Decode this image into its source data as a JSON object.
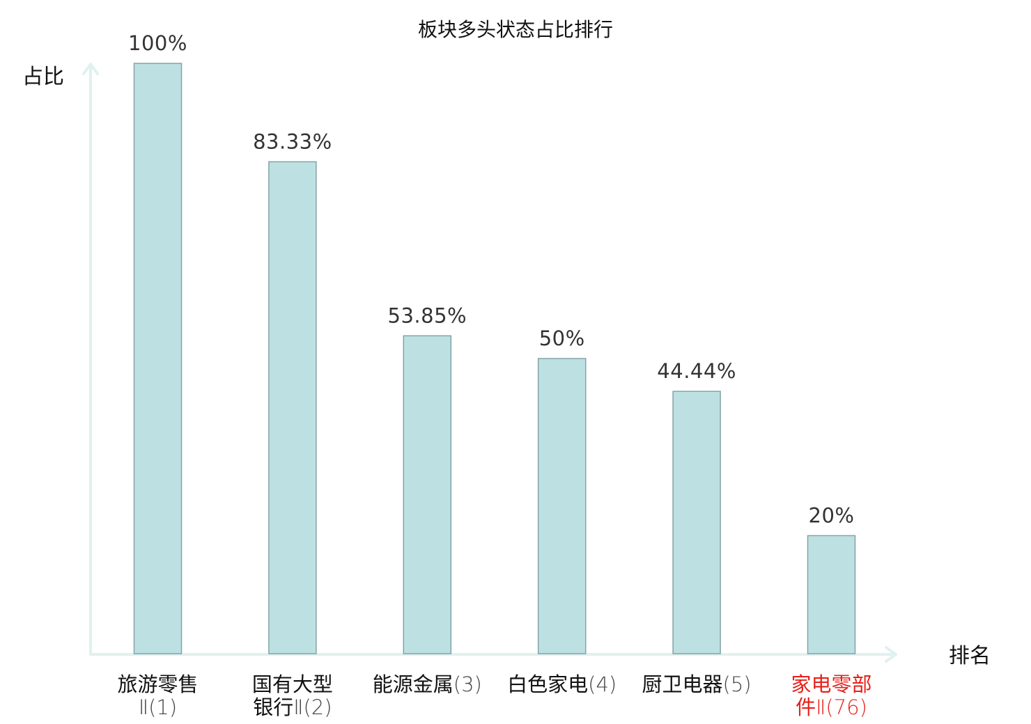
{
  "chart_data": {
    "type": "bar",
    "title": "板块多头状态占比排行",
    "ylabel": "占比",
    "xlabel": "排名",
    "ylim": [
      0,
      100
    ],
    "unit": "%",
    "grid": false,
    "categories": [
      {
        "name": [
          "旅游零售",
          ""
        ],
        "rank": [
          "",
          "Ⅱ(1)"
        ],
        "value": 100,
        "label": "100%",
        "highlight": false
      },
      {
        "name": [
          "国有大型",
          "银行"
        ],
        "rank": [
          "",
          "Ⅱ(2)"
        ],
        "value": 83.33,
        "label": "83.33%",
        "highlight": false
      },
      {
        "name": [
          "能源金属"
        ],
        "rank": [
          "(3)"
        ],
        "value": 53.85,
        "label": "53.85%",
        "highlight": false
      },
      {
        "name": [
          "白色家电"
        ],
        "rank": [
          "(4)"
        ],
        "value": 50,
        "label": "50%",
        "highlight": false
      },
      {
        "name": [
          "厨卫电器"
        ],
        "rank": [
          "(5)"
        ],
        "value": 44.44,
        "label": "44.44%",
        "highlight": false
      },
      {
        "name": [
          "家电零部",
          "件"
        ],
        "rank": [
          "",
          "Ⅱ(76)"
        ],
        "value": 20,
        "label": "20%",
        "highlight": true
      }
    ],
    "colors": {
      "bar_fill": "#bde0e3",
      "bar_stroke": "#84a3a6",
      "axis": "#e0f1ef",
      "highlight_text": "#e8201a"
    }
  }
}
